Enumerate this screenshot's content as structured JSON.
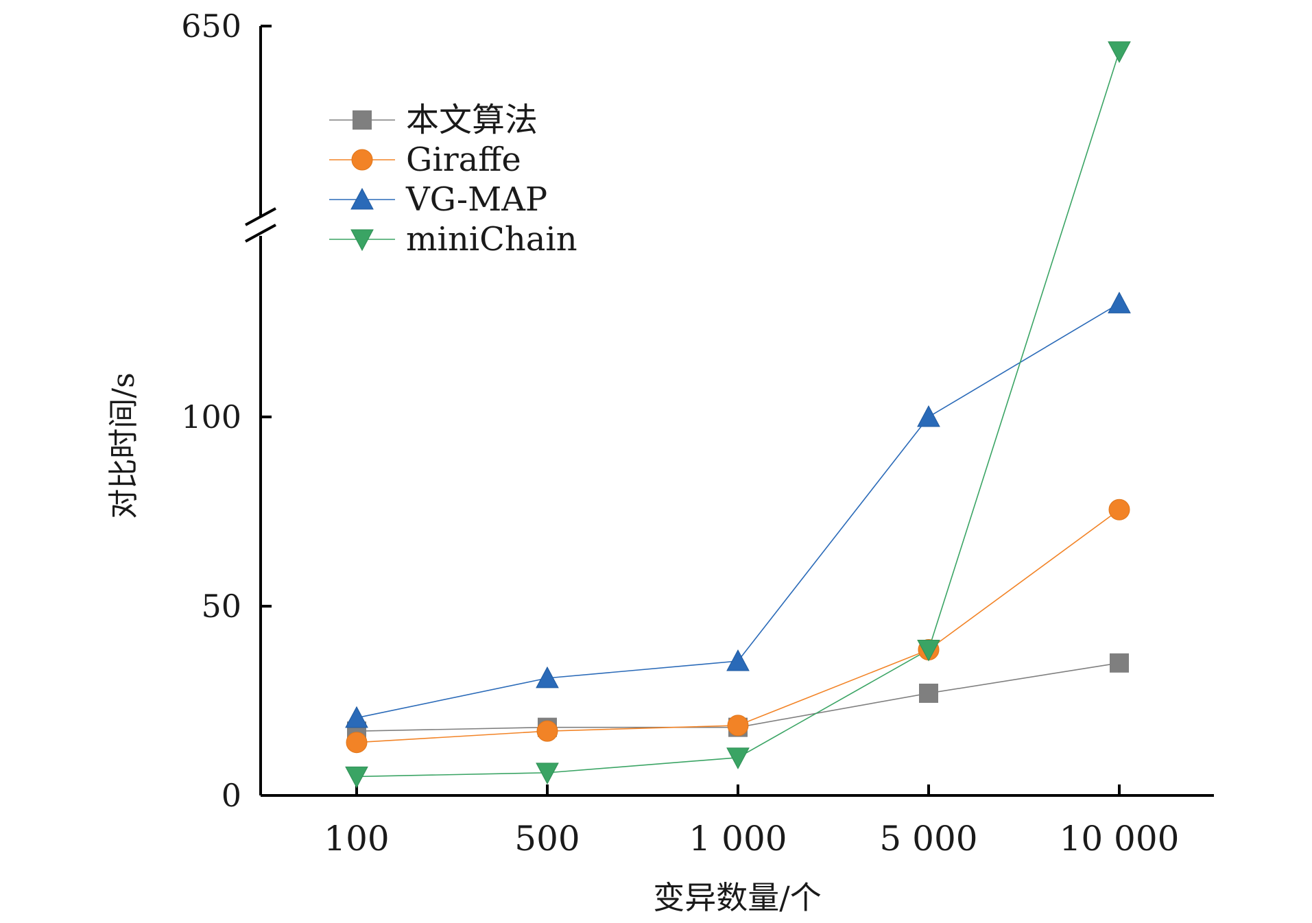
{
  "chart_data": {
    "type": "line",
    "xlabel": "变异数量/个",
    "ylabel": "对比时间/s",
    "categories": [
      "100",
      "500",
      "1 000",
      "5 000",
      "10 000"
    ],
    "y_axis": {
      "broken": true,
      "lower_segment_ticks": [
        0,
        50,
        100
      ],
      "upper_segment_ticks": [
        650
      ],
      "tick_labels": [
        "0",
        "50",
        "100",
        "650"
      ]
    },
    "legend": {
      "position": "top-left"
    },
    "series": [
      {
        "name": "本文算法",
        "color": "#7f7f7f",
        "marker": "square",
        "values": [
          17,
          18,
          18,
          27,
          35
        ]
      },
      {
        "name": "Giraffe",
        "color": "#f28326",
        "marker": "circle",
        "values": [
          14,
          17,
          18.5,
          38.5,
          75.5
        ]
      },
      {
        "name": "VG-MAP",
        "color": "#2a6ab8",
        "marker": "triangle-up",
        "values": [
          20.5,
          31,
          35.5,
          100,
          130
        ]
      },
      {
        "name": "miniChain",
        "color": "#3aa464",
        "marker": "triangle-down",
        "values": [
          5,
          6,
          10,
          38.5,
          585
        ]
      }
    ]
  }
}
